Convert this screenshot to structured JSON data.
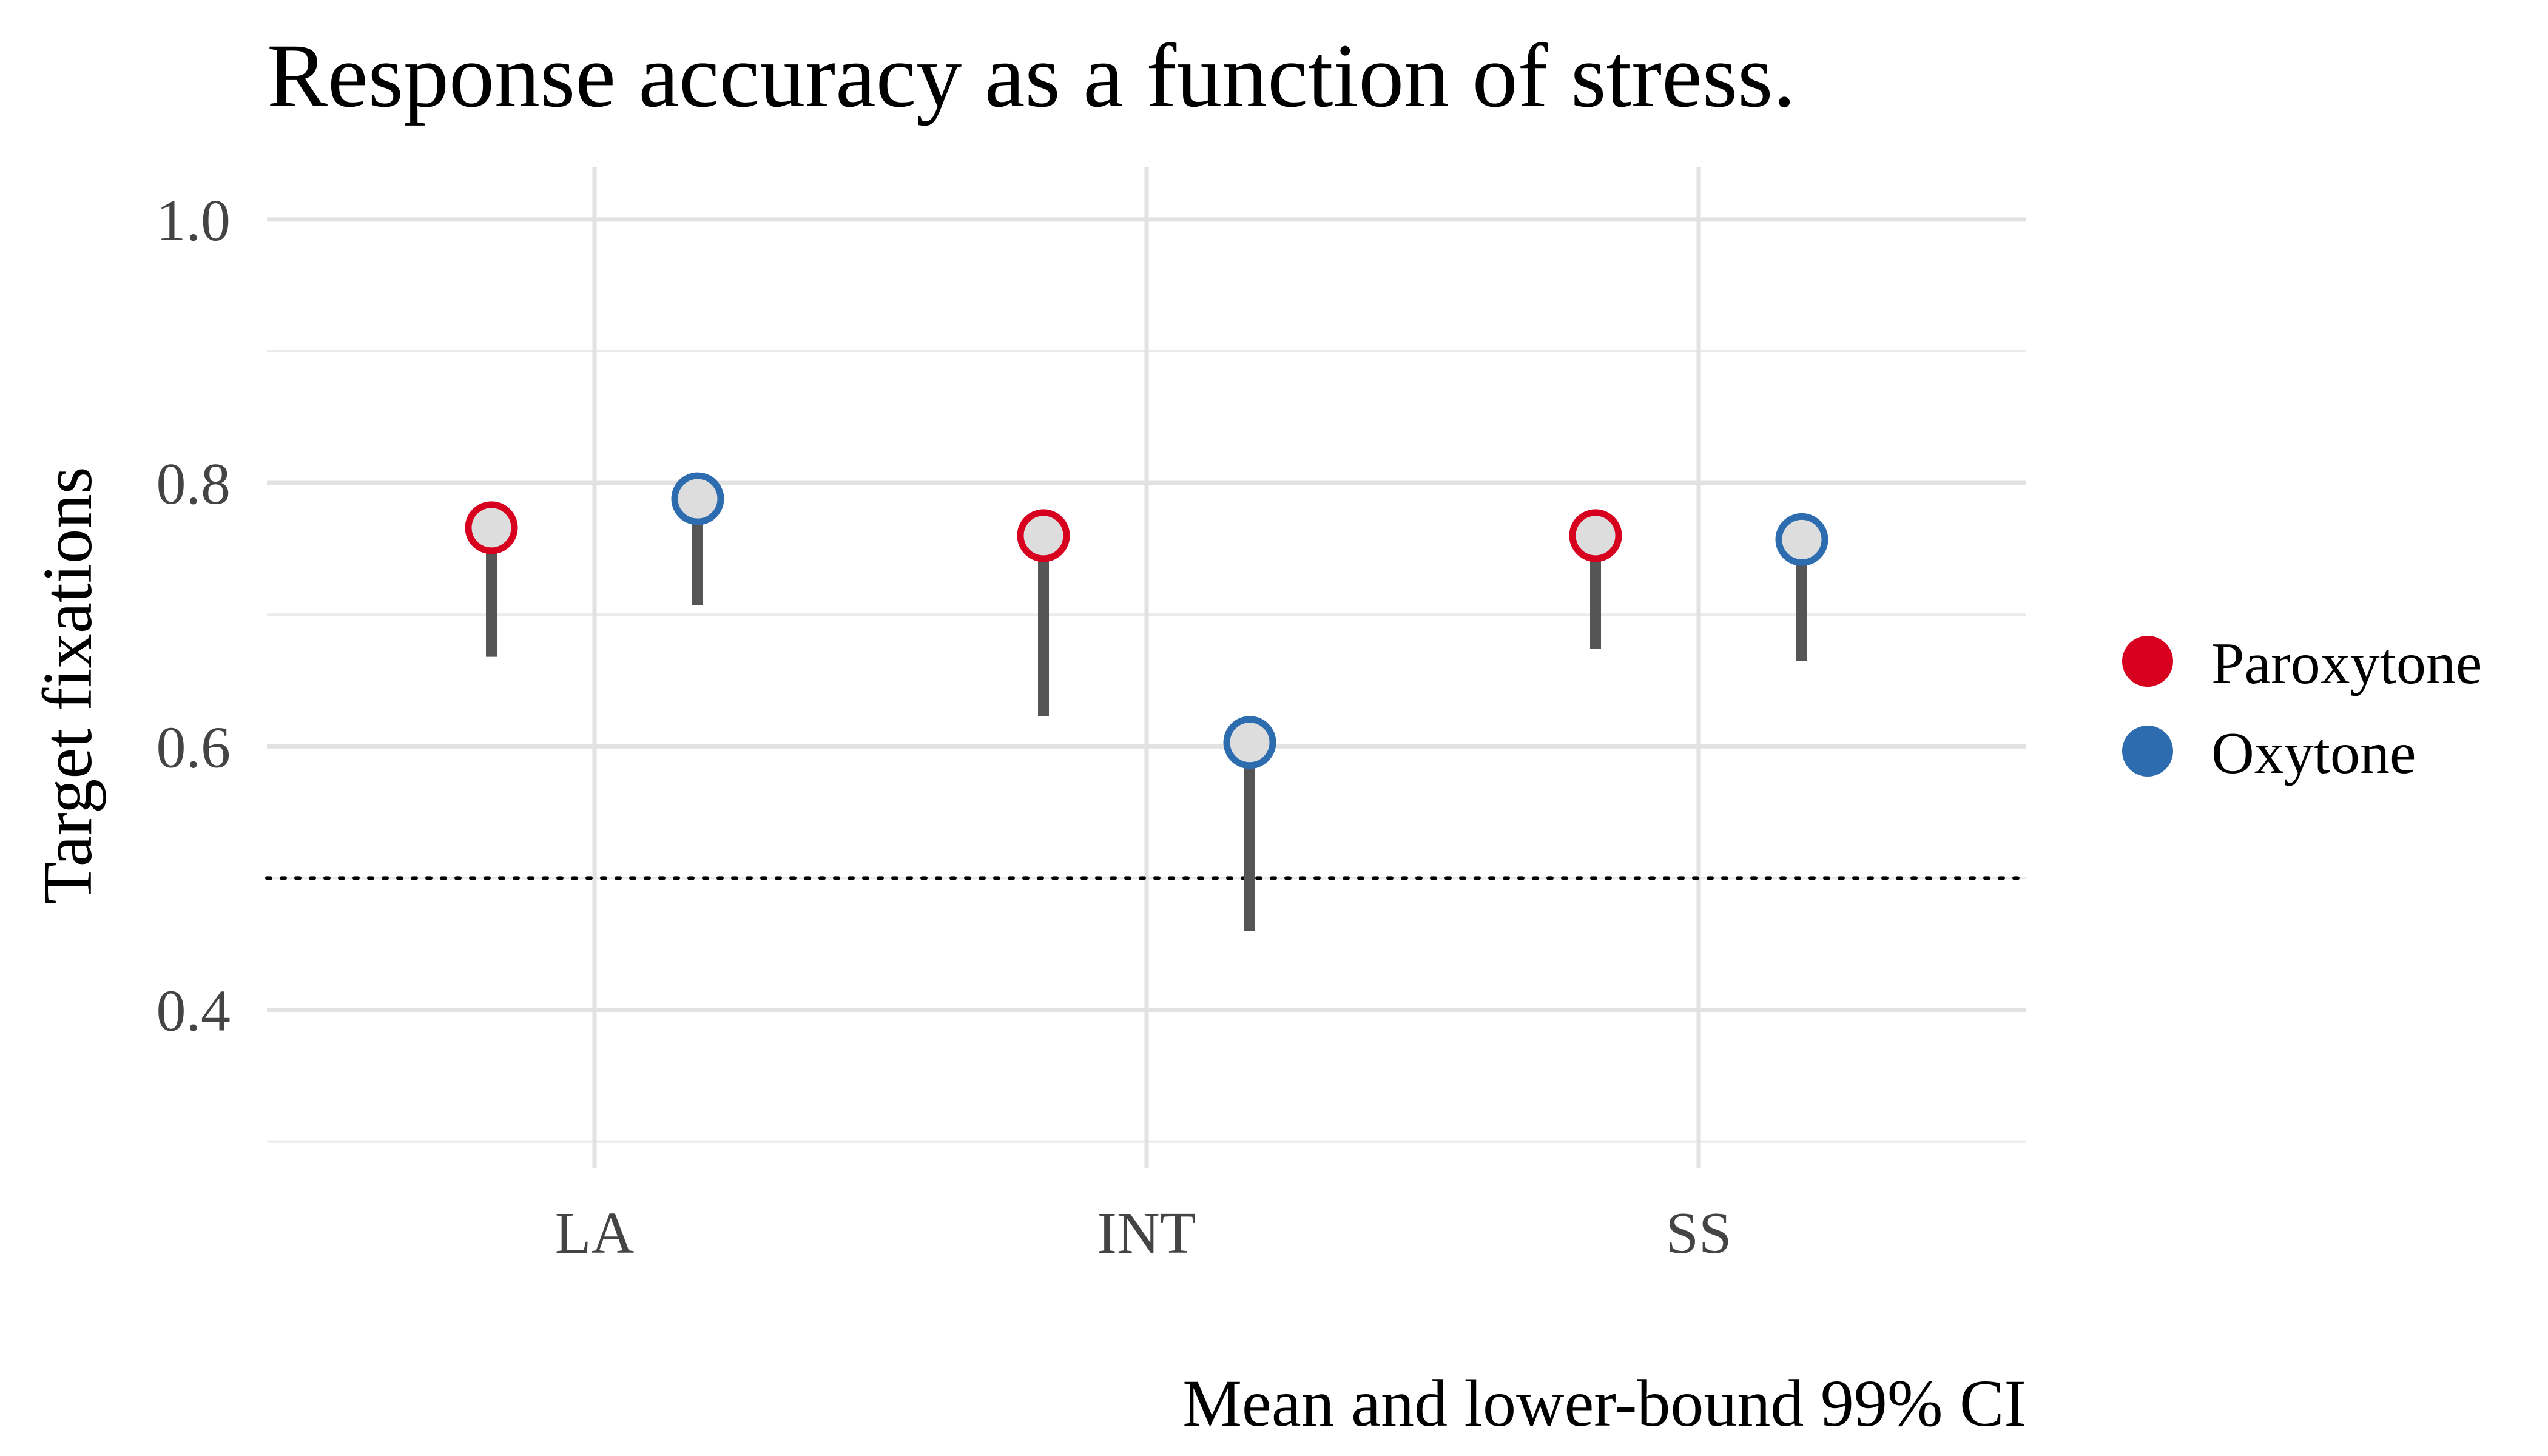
{
  "chart_data": {
    "type": "scatter",
    "title": "Response accuracy as a function of stress.",
    "xlabel": "",
    "ylabel": "Target fixations",
    "caption": "Mean and lower-bound 99% CI",
    "categories": [
      "LA",
      "INT",
      "SS"
    ],
    "ylim": [
      0.28,
      1.04
    ],
    "yticks": [
      0.4,
      0.6,
      0.8,
      1.0
    ],
    "ytick_labels": [
      "0.4",
      "0.6",
      "0.8",
      "1.0"
    ],
    "reference_line": {
      "y": 0.5,
      "style": "dotted"
    },
    "grid": true,
    "legend_position": "right",
    "series": [
      {
        "name": "Paroxytone",
        "color": "#d7001f",
        "mean": [
          0.766,
          0.76,
          0.76
        ],
        "lower": [
          0.668,
          0.623,
          0.674
        ]
      },
      {
        "name": "Oxytone",
        "color": "#2e6cb0",
        "mean": [
          0.788,
          0.603,
          0.757
        ],
        "lower": [
          0.707,
          0.46,
          0.665
        ]
      }
    ],
    "point_fill": "#dddddd",
    "whisker_color": "#555555"
  }
}
